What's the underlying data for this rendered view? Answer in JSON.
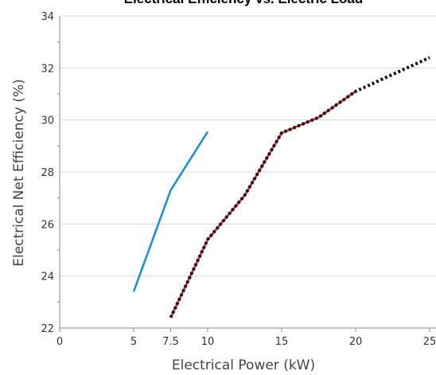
{
  "chart_data": {
    "type": "line",
    "title": "Electrical Efficiency vs. Electric Load",
    "xlabel": "Electrical Power (kW)",
    "ylabel": "Electrical Net Efficiency (%)",
    "xlim": [
      0,
      25
    ],
    "ylim": [
      22,
      34
    ],
    "x_ticks": [
      "0",
      "5",
      "7.5",
      "10",
      "15",
      "20",
      "25"
    ],
    "x_tick_values": [
      0,
      5,
      7.5,
      10,
      15,
      20,
      25
    ],
    "y_ticks": [
      "22",
      "24",
      "26",
      "28",
      "30",
      "32",
      "34"
    ],
    "y_tick_values": [
      22,
      24,
      26,
      28,
      30,
      32,
      34
    ],
    "grid": "horizontal",
    "legend": "none",
    "series": [
      {
        "color": "#1a8fc9",
        "style": "solid",
        "x": [
          5,
          7.5,
          10
        ],
        "y": [
          23.4,
          27.3,
          29.55
        ]
      },
      {
        "color": "#d2232a",
        "style": "solid",
        "x": [
          7.5,
          10,
          12.5,
          15,
          17.5,
          20
        ],
        "y": [
          22.4,
          25.4,
          27.1,
          29.5,
          30.1,
          31.1
        ]
      },
      {
        "color": "#111111",
        "style": "dotted",
        "x": [
          7.5,
          10,
          12.5,
          15,
          17.5,
          20,
          25
        ],
        "y": [
          22.4,
          25.4,
          27.1,
          29.5,
          30.1,
          31.1,
          32.4
        ]
      }
    ]
  },
  "colors": {
    "title": "#1e8a3c",
    "grid": "#d9d9d9",
    "axis": "#888888"
  }
}
